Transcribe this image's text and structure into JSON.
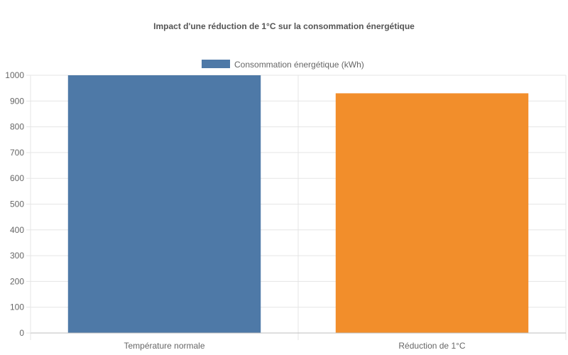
{
  "chart_data": {
    "type": "bar",
    "title": "Impact d'une réduction de 1°C sur la consommation énergétique",
    "categories": [
      "Température normale",
      "Réduction de 1°C"
    ],
    "series": [
      {
        "name": "Consommation énergétique (kWh)",
        "values": [
          1000,
          930
        ],
        "colors": [
          "#4e79a7",
          "#f28e2b"
        ]
      }
    ],
    "legend_color": "#4e79a7",
    "xlabel": "",
    "ylabel": "",
    "ylim": [
      0,
      1000
    ],
    "yticks": [
      0,
      100,
      200,
      300,
      400,
      500,
      600,
      700,
      800,
      900,
      1000
    ],
    "grid": true,
    "legend_position": "top-center"
  }
}
